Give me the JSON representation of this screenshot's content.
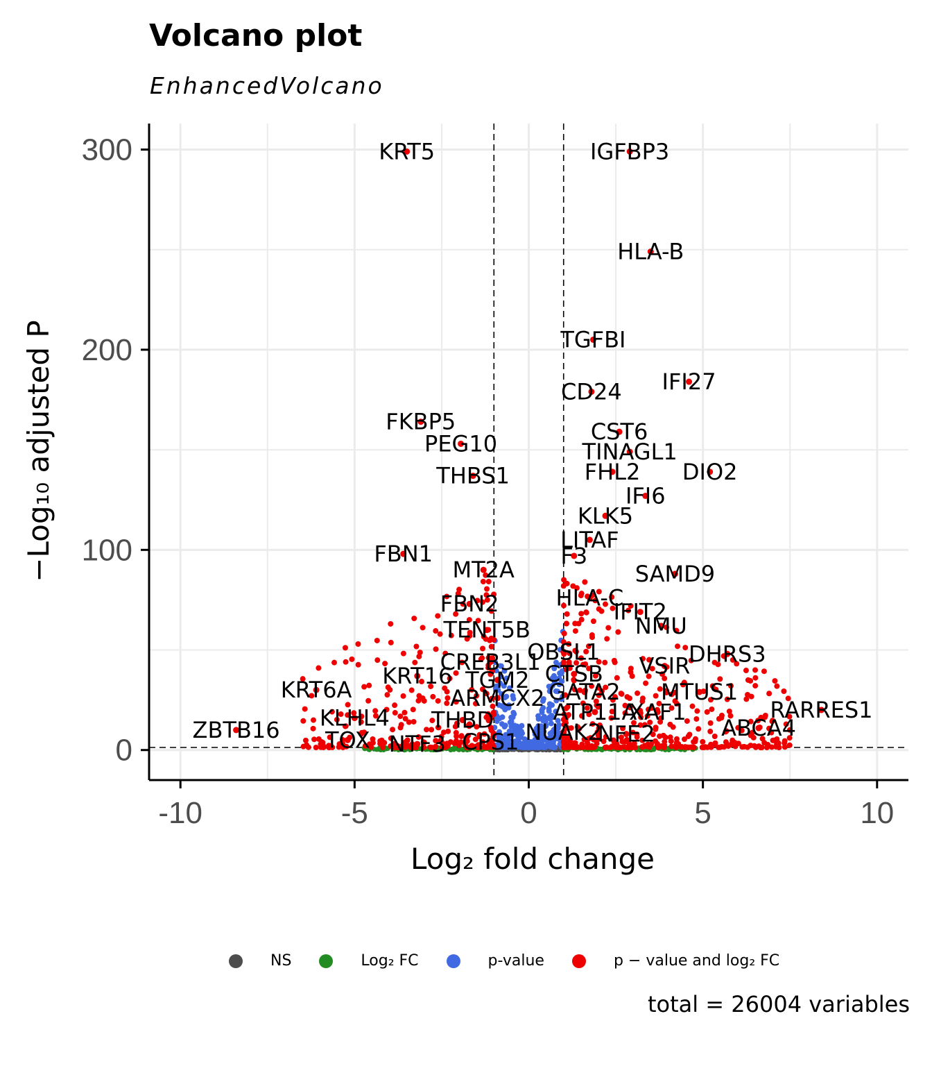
{
  "title": "Volcano plot",
  "subtitle": "EnhancedVolcano",
  "caption": "total = 26004 variables",
  "legend": [
    {
      "label": "NS",
      "color": "#4d4d4d"
    },
    {
      "label": "Log₂ FC",
      "color": "#228b22"
    },
    {
      "label": "p-value",
      "color": "#4169e1"
    },
    {
      "label": "p − value and log₂ FC",
      "color": "#ee0000"
    }
  ],
  "chart_data": {
    "type": "scatter",
    "xlabel": "Log₂ fold change",
    "ylabel": "−Log₁₀ adjusted P",
    "xlim": [
      -10.9,
      10.9
    ],
    "ylim": [
      -15,
      313
    ],
    "x_ticks": [
      -10,
      -5,
      0,
      5,
      10
    ],
    "y_ticks": [
      0,
      100,
      200,
      300
    ],
    "grid": true,
    "fc_cutoff": 1,
    "p_cutoff_log10": 1.3,
    "labeled_points": [
      {
        "label": "KRT5",
        "x": -3.5,
        "y": 299
      },
      {
        "label": "IGFBP3",
        "x": 2.9,
        "y": 299
      },
      {
        "label": "HLA-B",
        "x": 3.5,
        "y": 249
      },
      {
        "label": "TGFBI",
        "x": 1.85,
        "y": 205
      },
      {
        "label": "IFI27",
        "x": 4.6,
        "y": 184
      },
      {
        "label": "CD24",
        "x": 1.8,
        "y": 179
      },
      {
        "label": "FKBP5",
        "x": -3.1,
        "y": 164
      },
      {
        "label": "PEG10",
        "x": -1.95,
        "y": 153
      },
      {
        "label": "CST6",
        "x": 2.6,
        "y": 159
      },
      {
        "label": "TINAGL1",
        "x": 2.9,
        "y": 149
      },
      {
        "label": "DIO2",
        "x": 5.2,
        "y": 139
      },
      {
        "label": "FHL2",
        "x": 2.4,
        "y": 139
      },
      {
        "label": "THBS1",
        "x": -1.6,
        "y": 137
      },
      {
        "label": "IFI6",
        "x": 3.35,
        "y": 127
      },
      {
        "label": "KLK5",
        "x": 2.2,
        "y": 117
      },
      {
        "label": "LITAF",
        "x": 1.75,
        "y": 105
      },
      {
        "label": "FBN1",
        "x": -3.6,
        "y": 98
      },
      {
        "label": "F3",
        "x": 1.3,
        "y": 97
      },
      {
        "label": "SAMD9",
        "x": 4.2,
        "y": 88
      },
      {
        "label": "MT2A",
        "x": -1.3,
        "y": 90
      },
      {
        "label": "HLA-C",
        "x": 1.75,
        "y": 76
      },
      {
        "label": "FBN2",
        "x": -1.7,
        "y": 73
      },
      {
        "label": "IFIT2",
        "x": 3.2,
        "y": 69
      },
      {
        "label": "TENT5B",
        "x": -1.2,
        "y": 60
      },
      {
        "label": "NMU",
        "x": 3.8,
        "y": 62
      },
      {
        "label": "DHRS3",
        "x": 5.7,
        "y": 48
      },
      {
        "label": "OBSL1",
        "x": 1.0,
        "y": 49
      },
      {
        "label": "CREB3L1",
        "x": -1.1,
        "y": 44
      },
      {
        "label": "VSIR",
        "x": 3.9,
        "y": 42
      },
      {
        "label": "CTSB",
        "x": 1.3,
        "y": 38
      },
      {
        "label": "KRT16",
        "x": -3.2,
        "y": 37
      },
      {
        "label": "TGM2",
        "x": -0.9,
        "y": 35
      },
      {
        "label": "KRT6A",
        "x": -6.1,
        "y": 30
      },
      {
        "label": "GATA2",
        "x": 1.6,
        "y": 29
      },
      {
        "label": "MTUS1",
        "x": 4.9,
        "y": 29
      },
      {
        "label": "ARMCX2",
        "x": -0.9,
        "y": 26
      },
      {
        "label": "RARRES1",
        "x": 8.4,
        "y": 20
      },
      {
        "label": "ATP11A",
        "x": 1.9,
        "y": 19
      },
      {
        "label": "XAF1",
        "x": 3.7,
        "y": 19
      },
      {
        "label": "KLHL4",
        "x": -5.0,
        "y": 16
      },
      {
        "label": "THBD",
        "x": -1.9,
        "y": 15
      },
      {
        "label": "ZBTB16",
        "x": -8.4,
        "y": 10
      },
      {
        "label": "ABCA4",
        "x": 6.6,
        "y": 11
      },
      {
        "label": "NUAK2",
        "x": 1.0,
        "y": 9
      },
      {
        "label": "NFE2",
        "x": 2.8,
        "y": 8
      },
      {
        "label": "TOX",
        "x": -5.2,
        "y": 5
      },
      {
        "label": "NTF3",
        "x": -3.2,
        "y": 3
      },
      {
        "label": "CPS1",
        "x": -1.1,
        "y": 4
      }
    ]
  }
}
